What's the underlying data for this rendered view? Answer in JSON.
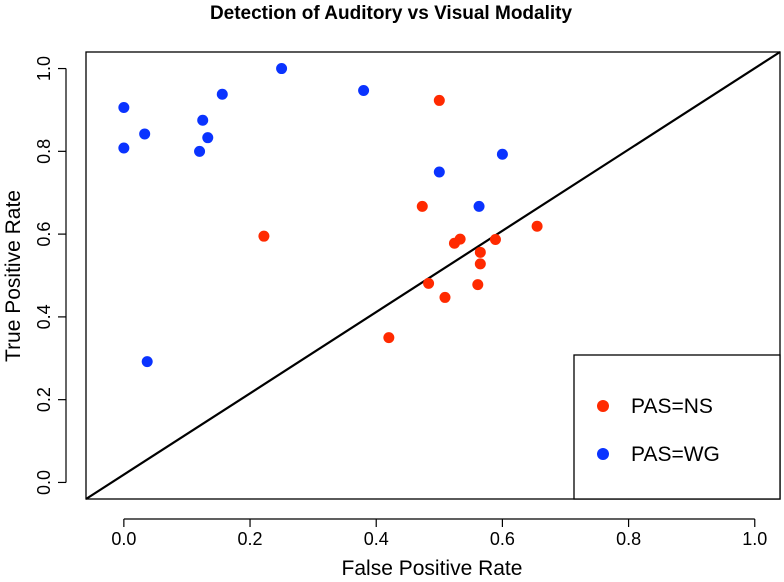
{
  "chart_data": {
    "type": "scatter",
    "title": "Detection of Auditory vs Visual Modality",
    "xlabel": "False Positive Rate",
    "ylabel": "True Positive Rate",
    "xlim": [
      -0.06,
      1.04
    ],
    "ylim": [
      -0.04,
      1.04
    ],
    "xticks": [
      0.0,
      0.2,
      0.4,
      0.6,
      0.8,
      1.0
    ],
    "yticks": [
      0.0,
      0.2,
      0.4,
      0.6,
      0.8,
      1.0
    ],
    "xtick_labels": [
      "0.0",
      "0.2",
      "0.4",
      "0.6",
      "0.8",
      "1.0"
    ],
    "ytick_labels": [
      "0.0",
      "0.2",
      "0.4",
      "0.6",
      "0.8",
      "1.0"
    ],
    "reference_line": {
      "from": [
        -0.06,
        -0.04
      ],
      "to": [
        1.04,
        1.04
      ]
    },
    "legend_position": "bottom-right",
    "series": [
      {
        "name": "PAS=NS",
        "color": "#ff2a00",
        "points": [
          [
            0.5,
            0.923
          ],
          [
            0.473,
            0.667
          ],
          [
            0.655,
            0.619
          ],
          [
            0.589,
            0.587
          ],
          [
            0.533,
            0.588
          ],
          [
            0.524,
            0.578
          ],
          [
            0.565,
            0.556
          ],
          [
            0.565,
            0.528
          ],
          [
            0.222,
            0.595
          ],
          [
            0.483,
            0.481
          ],
          [
            0.561,
            0.478
          ],
          [
            0.509,
            0.447
          ],
          [
            0.42,
            0.35
          ]
        ]
      },
      {
        "name": "PAS=WG",
        "color": "#0a33ff",
        "points": [
          [
            0.25,
            1.0
          ],
          [
            0.38,
            0.947
          ],
          [
            0.156,
            0.938
          ],
          [
            0.0,
            0.906
          ],
          [
            0.125,
            0.875
          ],
          [
            0.033,
            0.842
          ],
          [
            0.133,
            0.833
          ],
          [
            0.0,
            0.808
          ],
          [
            0.12,
            0.8
          ],
          [
            0.6,
            0.793
          ],
          [
            0.5,
            0.75
          ],
          [
            0.563,
            0.667
          ],
          [
            0.037,
            0.292
          ]
        ]
      }
    ]
  }
}
